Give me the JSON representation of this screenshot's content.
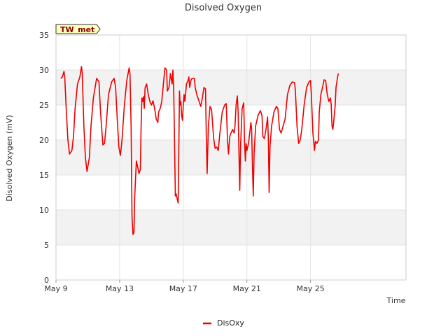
{
  "chart_data": {
    "type": "line",
    "title": "Disolved Oxygen",
    "xlabel": "Time",
    "ylabel": "Disolved Oxygen (mV)",
    "ylim": [
      0,
      35
    ],
    "yticks": [
      0,
      5,
      10,
      15,
      20,
      25,
      30,
      35
    ],
    "xlim": [
      0,
      22
    ],
    "xticks": [
      {
        "value": 0,
        "label": "May 9"
      },
      {
        "value": 4,
        "label": "May 13"
      },
      {
        "value": 8,
        "label": "May 17"
      },
      {
        "value": 12,
        "label": "May 21"
      },
      {
        "value": 16,
        "label": "May 25"
      }
    ],
    "station_tag": "TW_met",
    "legend": "DisOxy",
    "series": [
      {
        "name": "DisOxy",
        "color": "#ee0000",
        "points": [
          [
            0.3,
            28.8
          ],
          [
            0.4,
            29.0
          ],
          [
            0.5,
            29.8
          ],
          [
            0.55,
            29.0
          ],
          [
            0.65,
            24.0
          ],
          [
            0.75,
            20.0
          ],
          [
            0.85,
            18.0
          ],
          [
            1.0,
            18.5
          ],
          [
            1.1,
            20.5
          ],
          [
            1.2,
            24.5
          ],
          [
            1.35,
            28.0
          ],
          [
            1.5,
            29.0
          ],
          [
            1.6,
            30.5
          ],
          [
            1.65,
            29.5
          ],
          [
            1.75,
            22.0
          ],
          [
            1.85,
            17.5
          ],
          [
            1.95,
            15.5
          ],
          [
            2.1,
            17.5
          ],
          [
            2.2,
            22.0
          ],
          [
            2.35,
            26.0
          ],
          [
            2.55,
            28.8
          ],
          [
            2.7,
            28.3
          ],
          [
            2.8,
            24.0
          ],
          [
            2.95,
            19.3
          ],
          [
            3.05,
            19.5
          ],
          [
            3.15,
            22.0
          ],
          [
            3.3,
            26.5
          ],
          [
            3.5,
            28.3
          ],
          [
            3.65,
            28.8
          ],
          [
            3.75,
            27.5
          ],
          [
            3.85,
            23.0
          ],
          [
            3.95,
            19.0
          ],
          [
            4.05,
            17.8
          ],
          [
            4.15,
            20.0
          ],
          [
            4.3,
            25.0
          ],
          [
            4.45,
            28.5
          ],
          [
            4.6,
            30.3
          ],
          [
            4.65,
            29.5
          ],
          [
            4.72,
            22.0
          ],
          [
            4.78,
            9.0
          ],
          [
            4.84,
            6.5
          ],
          [
            4.9,
            6.8
          ],
          [
            4.95,
            12.0
          ],
          [
            5.05,
            17.0
          ],
          [
            5.15,
            16.0
          ],
          [
            5.22,
            15.2
          ],
          [
            5.3,
            15.8
          ],
          [
            5.35,
            22.0
          ],
          [
            5.4,
            26.0
          ],
          [
            5.45,
            25.5
          ],
          [
            5.5,
            26.2
          ],
          [
            5.55,
            24.5
          ],
          [
            5.6,
            27.5
          ],
          [
            5.7,
            28.0
          ],
          [
            5.8,
            26.5
          ],
          [
            5.9,
            25.5
          ],
          [
            6.0,
            25.0
          ],
          [
            6.1,
            25.6
          ],
          [
            6.2,
            24.5
          ],
          [
            6.3,
            23.0
          ],
          [
            6.4,
            22.5
          ],
          [
            6.45,
            24.0
          ],
          [
            6.55,
            24.5
          ],
          [
            6.65,
            25.5
          ],
          [
            6.75,
            28.0
          ],
          [
            6.85,
            30.3
          ],
          [
            6.95,
            30.0
          ],
          [
            7.0,
            27.0
          ],
          [
            7.1,
            27.5
          ],
          [
            7.2,
            29.5
          ],
          [
            7.3,
            28.0
          ],
          [
            7.35,
            30.0
          ],
          [
            7.4,
            27.0
          ],
          [
            7.45,
            20.0
          ],
          [
            7.5,
            12.0
          ],
          [
            7.55,
            12.3
          ],
          [
            7.6,
            11.8
          ],
          [
            7.68,
            11.0
          ],
          [
            7.72,
            19.0
          ],
          [
            7.76,
            27.0
          ],
          [
            7.8,
            25.0
          ],
          [
            7.85,
            25.5
          ],
          [
            7.9,
            23.5
          ],
          [
            7.95,
            22.8
          ],
          [
            8.0,
            25.0
          ],
          [
            8.05,
            26.5
          ],
          [
            8.1,
            25.5
          ],
          [
            8.2,
            28.0
          ],
          [
            8.3,
            28.5
          ],
          [
            8.35,
            29.0
          ],
          [
            8.4,
            27.5
          ],
          [
            8.5,
            28.7
          ],
          [
            8.6,
            28.8
          ],
          [
            8.7,
            28.8
          ],
          [
            8.75,
            27.5
          ],
          [
            8.85,
            26.5
          ],
          [
            9.0,
            25.5
          ],
          [
            9.1,
            24.8
          ],
          [
            9.2,
            26.0
          ],
          [
            9.3,
            27.5
          ],
          [
            9.4,
            27.3
          ],
          [
            9.45,
            20.0
          ],
          [
            9.5,
            15.2
          ],
          [
            9.58,
            22.0
          ],
          [
            9.68,
            24.8
          ],
          [
            9.78,
            24.3
          ],
          [
            9.85,
            22.0
          ],
          [
            9.92,
            20.0
          ],
          [
            10.0,
            18.8
          ],
          [
            10.1,
            19.0
          ],
          [
            10.2,
            18.5
          ],
          [
            10.3,
            21.0
          ],
          [
            10.45,
            24.0
          ],
          [
            10.6,
            25.0
          ],
          [
            10.7,
            25.2
          ],
          [
            10.78,
            20.0
          ],
          [
            10.84,
            18.0
          ],
          [
            10.92,
            20.5
          ],
          [
            11.0,
            21.0
          ],
          [
            11.1,
            21.5
          ],
          [
            11.2,
            21.0
          ],
          [
            11.25,
            22.0
          ],
          [
            11.32,
            25.0
          ],
          [
            11.4,
            26.3
          ],
          [
            11.45,
            24.0
          ],
          [
            11.5,
            18.0
          ],
          [
            11.55,
            12.8
          ],
          [
            11.6,
            19.0
          ],
          [
            11.7,
            24.5
          ],
          [
            11.8,
            25.3
          ],
          [
            11.85,
            20.0
          ],
          [
            11.9,
            17.0
          ],
          [
            11.95,
            19.5
          ],
          [
            12.0,
            18.5
          ],
          [
            12.1,
            19.5
          ],
          [
            12.2,
            21.5
          ],
          [
            12.25,
            22.5
          ],
          [
            12.3,
            21.5
          ],
          [
            12.35,
            16.0
          ],
          [
            12.4,
            12.0
          ],
          [
            12.45,
            18.0
          ],
          [
            12.55,
            22.0
          ],
          [
            12.7,
            23.5
          ],
          [
            12.85,
            24.2
          ],
          [
            12.95,
            23.5
          ],
          [
            13.0,
            20.5
          ],
          [
            13.1,
            20.2
          ],
          [
            13.2,
            21.5
          ],
          [
            13.3,
            23.3
          ],
          [
            13.35,
            20.0
          ],
          [
            13.4,
            12.5
          ],
          [
            13.45,
            19.0
          ],
          [
            13.55,
            22.0
          ],
          [
            13.7,
            24.0
          ],
          [
            13.85,
            24.8
          ],
          [
            13.95,
            24.5
          ],
          [
            14.05,
            21.5
          ],
          [
            14.15,
            21.0
          ],
          [
            14.25,
            21.8
          ],
          [
            14.4,
            23.0
          ],
          [
            14.55,
            26.5
          ],
          [
            14.7,
            27.8
          ],
          [
            14.85,
            28.3
          ],
          [
            15.0,
            28.2
          ],
          [
            15.05,
            27.0
          ],
          [
            15.15,
            22.0
          ],
          [
            15.25,
            19.5
          ],
          [
            15.35,
            20.0
          ],
          [
            15.45,
            21.5
          ],
          [
            15.6,
            25.0
          ],
          [
            15.75,
            27.5
          ],
          [
            15.9,
            28.3
          ],
          [
            16.0,
            28.5
          ],
          [
            16.05,
            26.5
          ],
          [
            16.15,
            21.0
          ],
          [
            16.25,
            18.5
          ],
          [
            16.3,
            19.8
          ],
          [
            16.4,
            19.5
          ],
          [
            16.5,
            20.0
          ],
          [
            16.55,
            24.0
          ],
          [
            16.65,
            26.5
          ],
          [
            16.75,
            27.5
          ],
          [
            16.85,
            28.6
          ],
          [
            16.95,
            28.5
          ],
          [
            17.05,
            26.5
          ],
          [
            17.15,
            25.5
          ],
          [
            17.25,
            26.0
          ],
          [
            17.3,
            25.0
          ],
          [
            17.35,
            22.0
          ],
          [
            17.4,
            21.5
          ],
          [
            17.45,
            22.5
          ],
          [
            17.55,
            25.0
          ],
          [
            17.6,
            27.5
          ],
          [
            17.7,
            29.0
          ],
          [
            17.75,
            29.5
          ]
        ]
      }
    ]
  }
}
